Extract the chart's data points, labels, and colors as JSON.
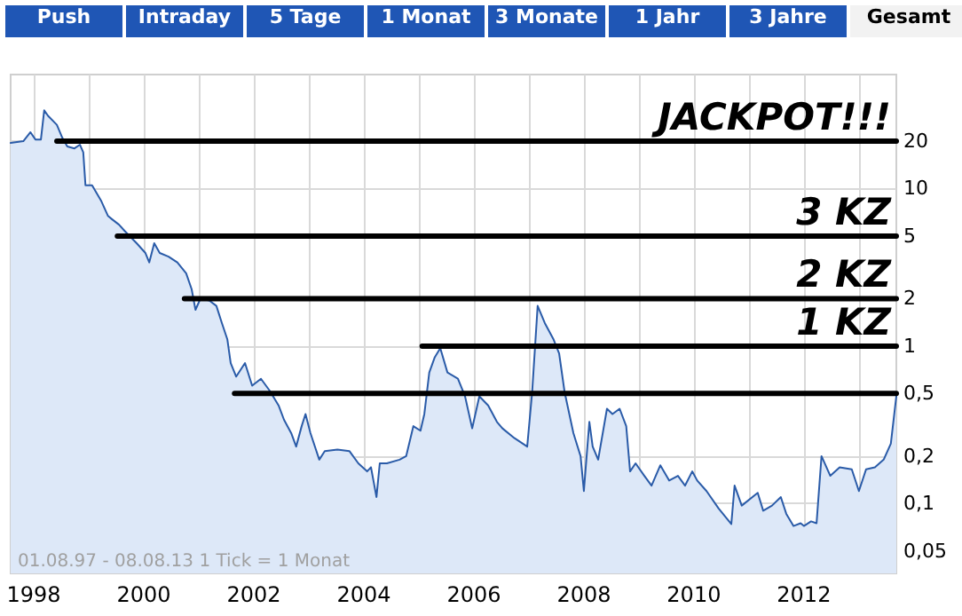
{
  "chart_data": {
    "type": "area",
    "annotations": [
      "Push",
      "Intraday",
      "5 Tage",
      "1 Monat",
      "3 Monate",
      "1 Jahr",
      "3 Jahre",
      "Gesamt",
      "01.08.97 - 08.08.13",
      "1 Tick = 1 Monat"
    ],
    "x": [
      1997.58,
      1997.81,
      1997.94,
      1998.03,
      1998.13,
      1998.19,
      1998.26,
      1998.42,
      1998.52,
      1998.61,
      1998.74,
      1998.84,
      1998.9,
      1998.94,
      1999.06,
      1999.23,
      1999.35,
      1999.42,
      1999.55,
      1999.65,
      1999.87,
      2000.03,
      2000.1,
      2000.19,
      2000.29,
      2000.45,
      2000.61,
      2000.77,
      2000.87,
      2000.94,
      2001.03,
      2001.19,
      2001.32,
      2001.42,
      2001.52,
      2001.58,
      2001.68,
      2001.84,
      2001.97,
      2002.13,
      2002.29,
      2002.45,
      2002.55,
      2002.68,
      2002.77,
      2002.87,
      2002.94,
      2003.03,
      2003.19,
      2003.29,
      2003.52,
      2003.74,
      2003.9,
      2004.06,
      2004.13,
      2004.23,
      2004.29,
      2004.42,
      2004.65,
      2004.77,
      2004.87,
      2004.9,
      2005.03,
      2005.1,
      2005.19,
      2005.29,
      2005.39,
      2005.52,
      2005.71,
      2005.84,
      2005.97,
      2006.1,
      2006.26,
      2006.42,
      2006.52,
      2006.74,
      2006.97,
      2007.06,
      2007.16,
      2007.29,
      2007.45,
      2007.55,
      2007.65,
      2007.81,
      2007.94,
      2008.0,
      2008.1,
      2008.16,
      2008.26,
      2008.42,
      2008.52,
      2008.65,
      2008.77,
      2008.84,
      2008.94,
      2009.1,
      2009.23,
      2009.39,
      2009.55,
      2009.71,
      2009.84,
      2009.97,
      2010.06,
      2010.23,
      2010.45,
      2010.68,
      2010.74,
      2010.87,
      2011.16,
      2011.26,
      2011.42,
      2011.58,
      2011.68,
      2011.81,
      2011.94,
      2012.0,
      2012.13,
      2012.23,
      2012.32,
      2012.48,
      2012.65,
      2012.87,
      2013.0,
      2013.13,
      2013.29,
      2013.45,
      2013.58,
      2013.68
    ],
    "series": [
      {
        "type": "line",
        "name": "JACKPOT!!!",
        "color": "#000000",
        "x": [
          1998.42,
          2013.68
        ],
        "values": [
          20,
          20
        ]
      },
      {
        "type": "line",
        "name": "3 KZ",
        "color": "#000000",
        "x": [
          1999.52,
          2013.68
        ],
        "values": [
          5,
          5
        ]
      },
      {
        "type": "line",
        "name": "2 KZ",
        "color": "#000000",
        "x": [
          2000.74,
          2013.68
        ],
        "values": [
          2,
          2
        ]
      },
      {
        "type": "line",
        "name": "1 KZ",
        "color": "#000000",
        "x": [
          2005.06,
          2013.68
        ],
        "values": [
          1,
          1
        ]
      },
      {
        "type": "line",
        "color": "#000000",
        "x": [
          2001.65,
          2013.68
        ],
        "values": [
          0.5,
          0.5
        ]
      },
      {
        "color": "#2a5ba8",
        "values": [
          19.5,
          20,
          22.8,
          20.5,
          20.5,
          31.4,
          29,
          25.4,
          21,
          18.5,
          18,
          19,
          17,
          10.5,
          10.5,
          8.3,
          6.7,
          6.4,
          5.9,
          5.4,
          4.5,
          3.9,
          3.4,
          4.5,
          3.9,
          3.7,
          3.4,
          2.9,
          2.3,
          1.7,
          2.0,
          1.95,
          1.8,
          1.4,
          1.1,
          0.78,
          0.64,
          0.78,
          0.56,
          0.62,
          0.52,
          0.42,
          0.34,
          0.28,
          0.23,
          0.31,
          0.37,
          0.28,
          0.19,
          0.215,
          0.22,
          0.215,
          0.18,
          0.16,
          0.17,
          0.11,
          0.18,
          0.18,
          0.19,
          0.2,
          0.28,
          0.31,
          0.29,
          0.37,
          0.68,
          0.85,
          0.97,
          0.68,
          0.62,
          0.48,
          0.3,
          0.48,
          0.42,
          0.33,
          0.3,
          0.26,
          0.23,
          0.51,
          1.8,
          1.4,
          1.1,
          0.9,
          0.51,
          0.28,
          0.2,
          0.12,
          0.33,
          0.23,
          0.19,
          0.4,
          0.37,
          0.4,
          0.31,
          0.16,
          0.18,
          0.15,
          0.13,
          0.175,
          0.14,
          0.15,
          0.13,
          0.16,
          0.14,
          0.12,
          0.093,
          0.074,
          0.13,
          0.097,
          0.117,
          0.09,
          0.097,
          0.11,
          0.086,
          0.072,
          0.075,
          0.072,
          0.077,
          0.075,
          0.2,
          0.15,
          0.17,
          0.165,
          0.12,
          0.165,
          0.17,
          0.19,
          0.24,
          0.48
        ]
      }
    ],
    "xlim": [
      1997.58,
      2013.68
    ],
    "xticks": [
      1998,
      {
        "value": 1999,
        "label": null
      },
      2000,
      {
        "value": 2001,
        "label": null
      },
      2002,
      {
        "value": 2003,
        "label": null
      },
      2004,
      {
        "value": 2005,
        "label": null
      },
      2006,
      {
        "value": 2007,
        "label": null
      },
      2008,
      {
        "value": 2009,
        "label": null
      },
      2010,
      {
        "value": 2011,
        "label": null
      },
      2012,
      {
        "value": 2013,
        "label": null
      }
    ],
    "ylim": [
      0.036,
      53
    ],
    "yticks": [
      {
        "value": 0.05,
        "label": "0,05"
      },
      {
        "value": 0.1,
        "label": "0,1"
      },
      {
        "value": 0.2,
        "label": "0,2"
      },
      {
        "value": 0.5,
        "label": "0,5"
      },
      1,
      2,
      5,
      10,
      20
    ],
    "log": "y",
    "grid": true,
    "marker": "none",
    "line_style": "solid"
  }
}
